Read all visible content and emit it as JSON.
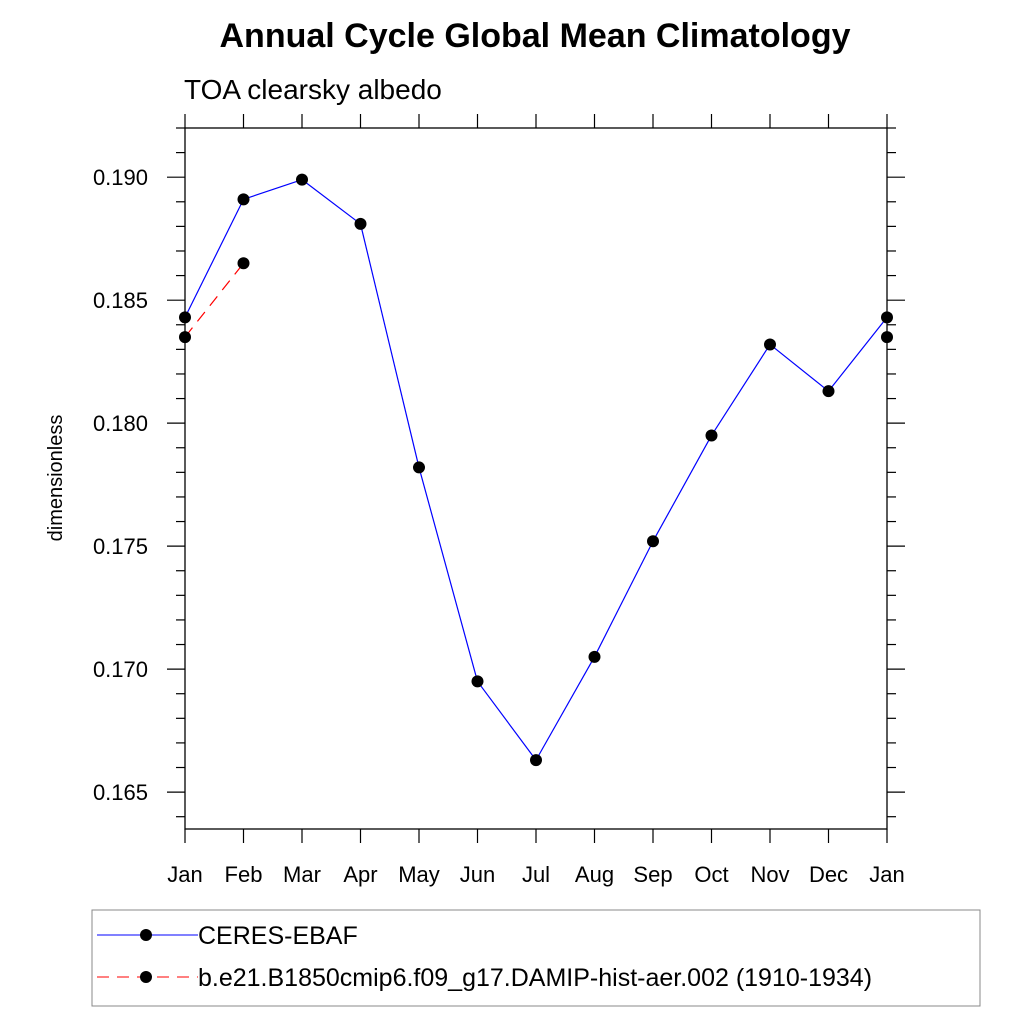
{
  "chart_data": {
    "type": "line",
    "title": "Annual Cycle Global Mean Climatology",
    "subtitle": "TOA clearsky albedo",
    "xlabel": "",
    "ylabel": "dimensionless",
    "categories": [
      "Jan",
      "Feb",
      "Mar",
      "Apr",
      "May",
      "Jun",
      "Jul",
      "Aug",
      "Sep",
      "Oct",
      "Nov",
      "Dec",
      "Jan"
    ],
    "ylim": [
      0.1635,
      0.192
    ],
    "yticks": [
      0.165,
      0.17,
      0.175,
      0.18,
      0.185,
      0.19
    ],
    "ytick_labels": [
      "0.165",
      "0.170",
      "0.175",
      "0.180",
      "0.185",
      "0.190"
    ],
    "series": [
      {
        "name": "CERES-EBAF",
        "color": "#0000ff",
        "dash": "solid",
        "values": [
          0.1843,
          0.1891,
          0.1899,
          0.1881,
          0.1782,
          0.1695,
          0.1663,
          0.1705,
          0.1752,
          0.1795,
          0.1832,
          0.1813,
          0.1843
        ]
      },
      {
        "name": "b.e21.B1850cmip6.f09_g17.DAMIP-hist-aer.002 (1910-1934)",
        "color": "#ff0000",
        "dash": "dashed",
        "values": [
          0.1835,
          0.1865,
          null,
          null,
          null,
          null,
          null,
          null,
          null,
          null,
          null,
          null,
          0.1835
        ]
      }
    ],
    "legend_position": "bottom-left"
  }
}
